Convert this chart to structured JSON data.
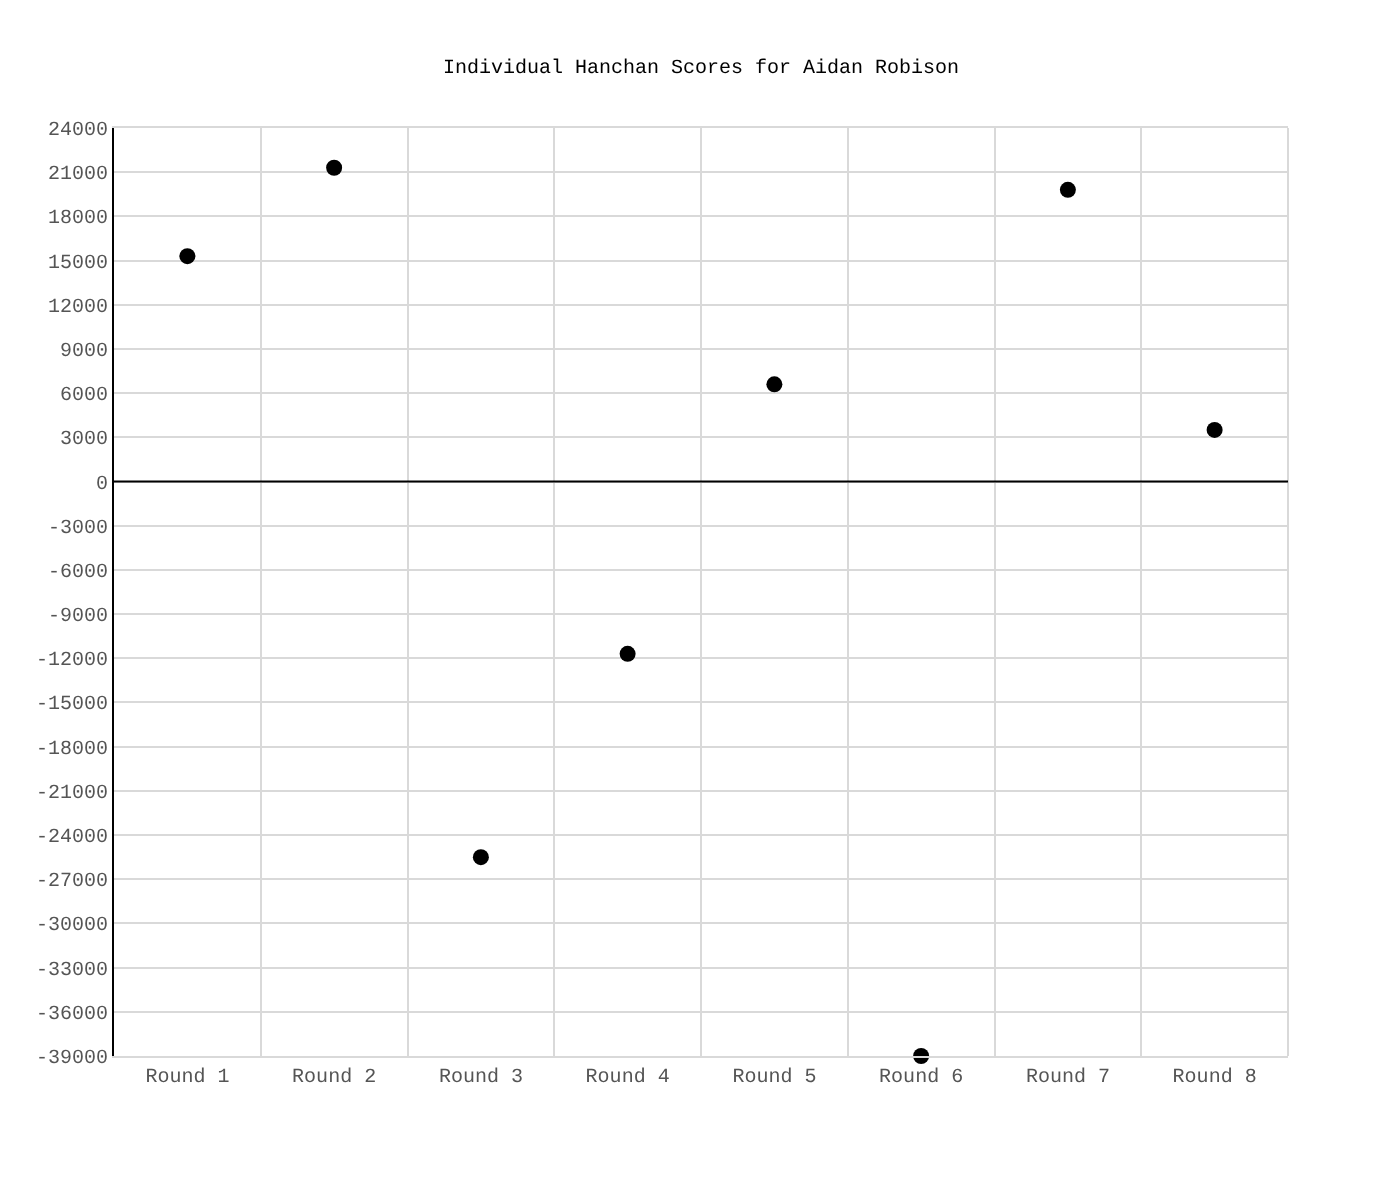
{
  "chart_data": {
    "type": "scatter",
    "title": "Individual Hanchan Scores for Aidan Robison",
    "categories": [
      "Round 1",
      "Round 2",
      "Round 3",
      "Round 4",
      "Round 5",
      "Round 6",
      "Round 7",
      "Round 8"
    ],
    "series": [
      {
        "color": "#000000",
        "values": [
          15300,
          21300,
          -25500,
          -11700,
          6600,
          -39000,
          19800,
          3500
        ]
      }
    ],
    "ylim": [
      -39000,
      24000
    ],
    "yticks": [
      -39000,
      -36000,
      -33000,
      -30000,
      -27000,
      -24000,
      -21000,
      -18000,
      -15000,
      -12000,
      -9000,
      -6000,
      -3000,
      0,
      3000,
      6000,
      9000,
      12000,
      15000,
      18000,
      21000,
      24000
    ],
    "ref_lines": [
      {
        "axis": "y",
        "value": 0,
        "color": "#000000"
      }
    ],
    "grid": true,
    "marker": "circle"
  }
}
